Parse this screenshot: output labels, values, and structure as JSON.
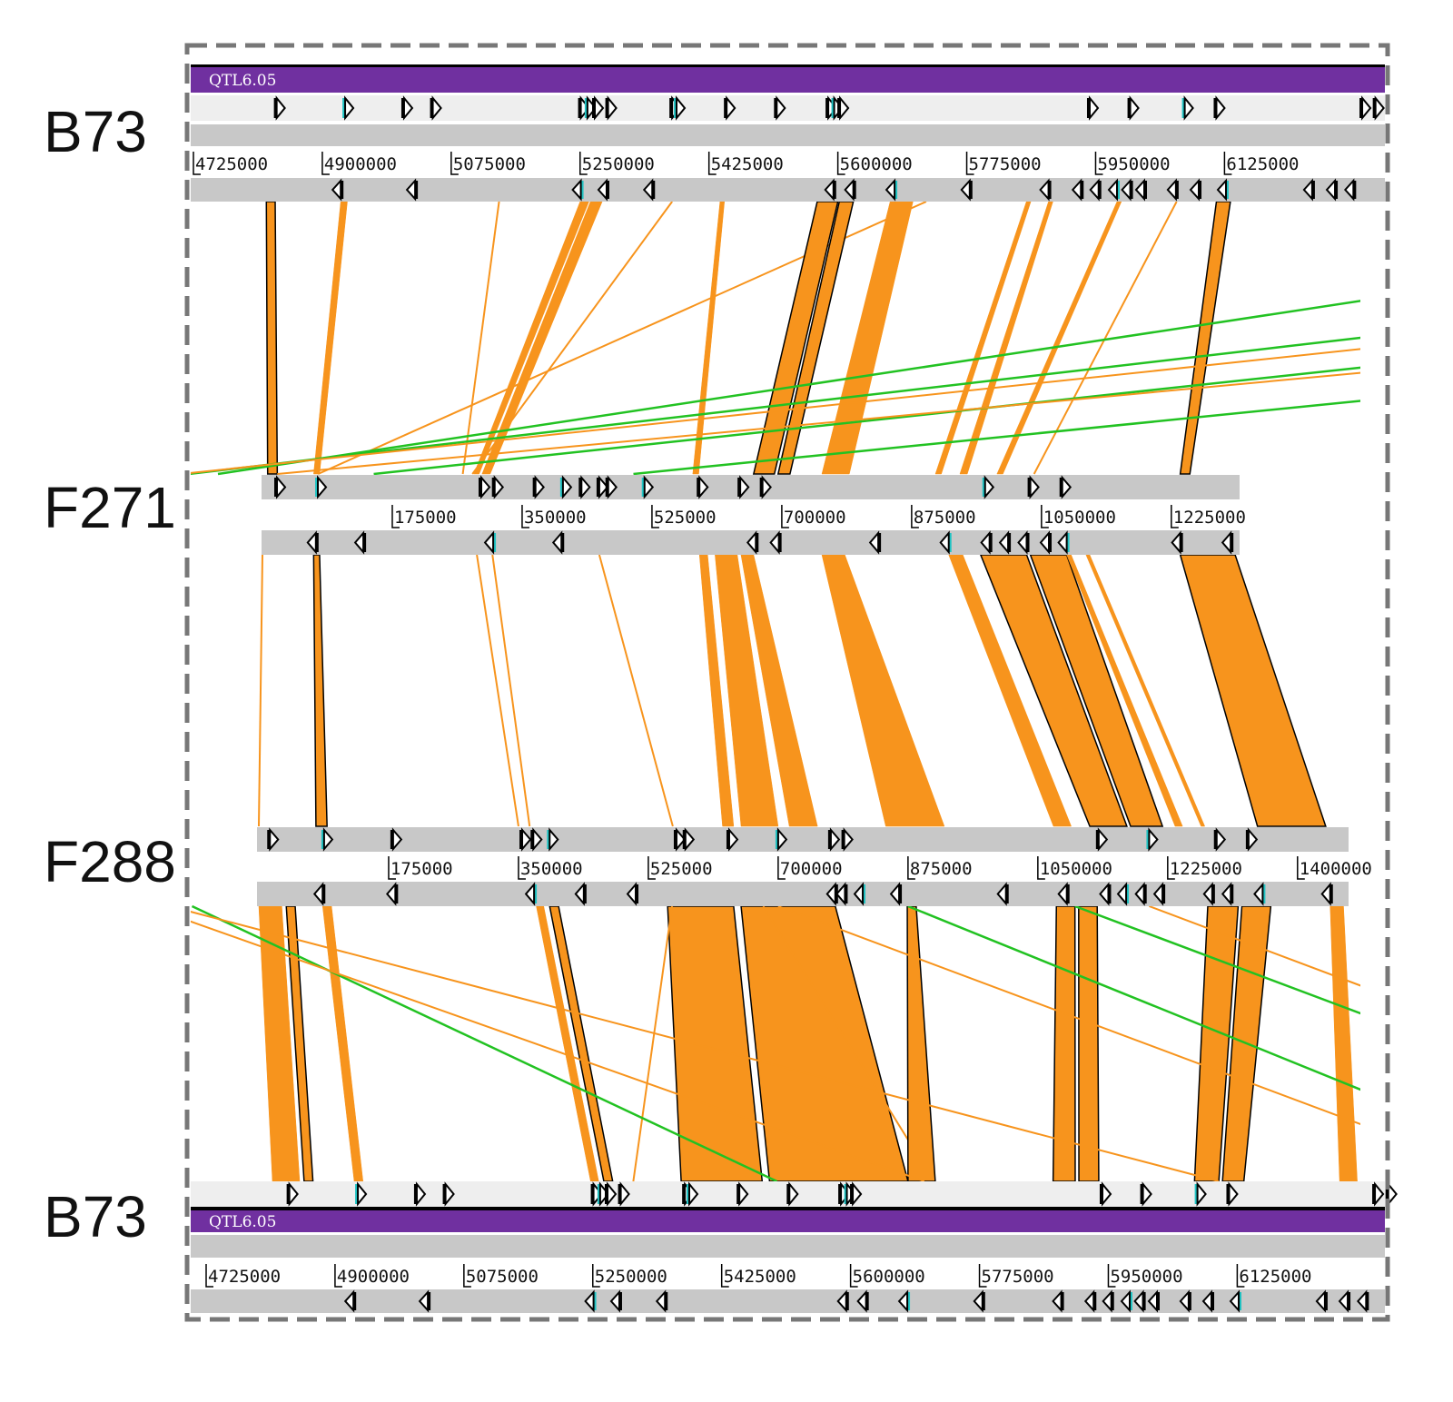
{
  "colors": {
    "match": "#f7941d",
    "match_inverted": "#22c222",
    "annotation": "#7030a0",
    "track": "#c8c8c8",
    "track_light": "#eeeeee",
    "gene_highlight": "#21c4c4"
  },
  "genomes": [
    {
      "id": "b73_top",
      "label": "B73",
      "annotation": "QTL6.05",
      "ticks": [
        "4725000",
        "4900000",
        "5075000",
        "5250000",
        "5425000",
        "5600000",
        "5775000",
        "5950000",
        "6125000"
      ],
      "tick_values": [
        4725000,
        4900000,
        5075000,
        5250000,
        5425000,
        5600000,
        5775000,
        5950000,
        6125000
      ]
    },
    {
      "id": "f271",
      "label": "F271",
      "ticks": [
        "175000",
        "350000",
        "525000",
        "700000",
        "875000",
        "1050000",
        "1225000"
      ],
      "tick_values": [
        175000,
        350000,
        525000,
        700000,
        875000,
        1050000,
        1225000
      ]
    },
    {
      "id": "f288",
      "label": "F288",
      "ticks": [
        "175000",
        "350000",
        "525000",
        "700000",
        "875000",
        "1050000",
        "1225000",
        "1400000"
      ],
      "tick_values": [
        175000,
        350000,
        525000,
        700000,
        875000,
        1050000,
        1225000,
        1400000
      ]
    },
    {
      "id": "b73_bottom",
      "label": "B73",
      "annotation": "QTL6.05",
      "ticks": [
        "4725000",
        "4900000",
        "5075000",
        "5250000",
        "5425000",
        "5600000",
        "5775000",
        "5950000",
        "6125000"
      ],
      "tick_values": [
        4725000,
        4900000,
        5075000,
        5250000,
        5425000,
        5600000,
        5775000,
        5950000,
        6125000
      ]
    }
  ],
  "genes": {
    "b73_forward": [
      4838000,
      4931000,
      5011000,
      5050000,
      5251000,
      5260000,
      5270000,
      5288000,
      5375000,
      5381000,
      5449000,
      5517000,
      5587000,
      5595000,
      5603000,
      5942000,
      5997000,
      6071000,
      6114000,
      6312000,
      6330000
    ],
    "b73_reverse": [
      4925000,
      5026000,
      5251000,
      5286000,
      5348000,
      5594000,
      5621000,
      5677000,
      5779000,
      5886000,
      5930000,
      5954000,
      5979000,
      5997000,
      6016000,
      6059000,
      6090000,
      6127000,
      6244000,
      6275000,
      6300000
    ],
    "f271_forward": [
      19600,
      74700,
      295000,
      313000,
      368000,
      405000,
      430000,
      454000,
      466000,
      515000,
      589000,
      644000,
      674000,
      974000,
      1035000,
      1078000
    ],
    "f271_reverse": [
      72000,
      136000,
      311000,
      403000,
      665000,
      696000,
      830000,
      925000,
      980000,
      1005000,
      1030000,
      1060000,
      1084000,
      1237000,
      1305000
    ],
    "f288_forward": [
      15000,
      88000,
      181000,
      355000,
      370000,
      392000,
      563000,
      575000,
      634000,
      700000,
      771000,
      789000,
      1132000,
      1200000,
      1291000,
      1334000
    ],
    "f288_reverse": [
      86000,
      184000,
      371000,
      438000,
      508000,
      777000,
      790000,
      814000,
      863000,
      1007000,
      1089000,
      1145000,
      1169000,
      1193000,
      1218000,
      1285000,
      1310000,
      1353000,
      1444000
    ]
  },
  "comparisons": {
    "b73_f271": [
      [
        4824000,
        4836000,
        7000,
        20000,
        "o",
        1
      ],
      [
        4925000,
        4934000,
        69000,
        77000,
        "o",
        0
      ],
      [
        5250000,
        5262000,
        285000,
        292000,
        "o",
        0
      ],
      [
        5264000,
        5280000,
        296000,
        307000,
        "o",
        0
      ],
      [
        5140000,
        5142000,
        270000,
        272000,
        "o",
        0
      ],
      [
        5375000,
        5377000,
        283000,
        285000,
        "o",
        0
      ],
      [
        5720000,
        5724000,
        75000,
        79000,
        "o",
        0
      ],
      [
        5440000,
        5446000,
        580000,
        588000,
        "o",
        0
      ],
      [
        5572000,
        5600000,
        662000,
        690000,
        "o",
        1
      ],
      [
        5602000,
        5621000,
        695000,
        711000,
        "o",
        1
      ],
      [
        5671000,
        5702000,
        754000,
        791000,
        "o",
        0
      ],
      [
        5856000,
        5862000,
        907000,
        915000,
        "o",
        0
      ],
      [
        5886000,
        5892000,
        940000,
        950000,
        "o",
        0
      ],
      [
        5979000,
        5985000,
        990000,
        998000,
        "o",
        0
      ],
      [
        6060000,
        6064000,
        1040000,
        1046000,
        "o",
        0
      ],
      [
        6114000,
        6133000,
        1237000,
        1250000,
        "o",
        1
      ],
      [
        7200000,
        7202000,
        -60000,
        -58000,
        "g",
        0
      ],
      [
        7900000,
        7902000,
        -100000,
        -98000,
        "g",
        0
      ],
      [
        8400000,
        8402000,
        150000,
        152000,
        "g",
        0
      ],
      [
        9000000,
        9002000,
        500000,
        502000,
        "g",
        0
      ],
      [
        8200000,
        8203000,
        -110000,
        -107000,
        "o",
        0
      ],
      [
        8800000,
        8802000,
        20000,
        22000,
        "o",
        0
      ]
    ],
    "f271_f288": [
      [
        0,
        1500,
        0,
        1500,
        "o",
        0
      ],
      [
        69000,
        77000,
        77000,
        92000,
        "o",
        1
      ],
      [
        289000,
        292000,
        350000,
        353000,
        "o",
        0
      ],
      [
        310000,
        313000,
        365000,
        368000,
        "o",
        0
      ],
      [
        454000,
        456000,
        558000,
        560000,
        "o",
        0
      ],
      [
        589000,
        600000,
        625000,
        640000,
        "o",
        0
      ],
      [
        610000,
        640000,
        650000,
        700000,
        "o",
        0
      ],
      [
        645000,
        662000,
        715000,
        753000,
        "o",
        0
      ],
      [
        754000,
        785000,
        845000,
        924000,
        "o",
        0
      ],
      [
        925000,
        944000,
        1071000,
        1095000,
        "o",
        0
      ],
      [
        968000,
        1030000,
        1120000,
        1170000,
        "o",
        1
      ],
      [
        1035000,
        1084000,
        1175000,
        1218000,
        "o",
        1
      ],
      [
        1084000,
        1090000,
        1235000,
        1245000,
        "o",
        0
      ],
      [
        1110000,
        1115000,
        1270000,
        1275000,
        "o",
        0
      ],
      [
        1237000,
        1311000,
        1346000,
        1438000,
        "o",
        1
      ]
    ],
    "f288_b73": [
      [
        0,
        31000,
        4815000,
        4852000,
        "o",
        0
      ],
      [
        37000,
        49000,
        4858000,
        4870000,
        "o",
        1
      ],
      [
        86000,
        98000,
        4926000,
        4938000,
        "o",
        0
      ],
      [
        374000,
        384000,
        5247000,
        5258000,
        "o",
        0
      ],
      [
        392000,
        404000,
        5265000,
        5277000,
        "o",
        1
      ],
      [
        551000,
        640000,
        5370000,
        5480000,
        "o",
        1
      ],
      [
        650000,
        777000,
        5490000,
        5678000,
        "o",
        1
      ],
      [
        557000,
        560000,
        5305000,
        5308000,
        "o",
        0
      ],
      [
        680000,
        682000,
        5713000,
        5715000,
        "o",
        1
      ],
      [
        874000,
        886000,
        5678000,
        5715000,
        "o",
        1
      ],
      [
        1075000,
        1100000,
        5875000,
        5905000,
        "o",
        1
      ],
      [
        1105000,
        1130000,
        5910000,
        5937000,
        "o",
        1
      ],
      [
        1279000,
        1320000,
        6067000,
        6100000,
        "o",
        1
      ],
      [
        1325000,
        1364000,
        6105000,
        6134000,
        "o",
        1
      ],
      [
        1444000,
        1462000,
        6264000,
        6288000,
        "o",
        0
      ],
      [
        875000,
        877000,
        6600000,
        6602000,
        "g",
        0
      ],
      [
        -90000,
        -88000,
        5500000,
        5502000,
        "g",
        0
      ],
      [
        -150000,
        -148000,
        5700000,
        5702000,
        "o",
        0
      ],
      [
        -120000,
        -118000,
        6100000,
        6102000,
        "o",
        0
      ],
      [
        700000,
        702000,
        6500000,
        6502000,
        "o",
        0
      ],
      [
        1100000,
        1102000,
        6900000,
        6902000,
        "g",
        0
      ],
      [
        1200000,
        1202000,
        7000000,
        7002000,
        "o",
        0
      ]
    ]
  }
}
